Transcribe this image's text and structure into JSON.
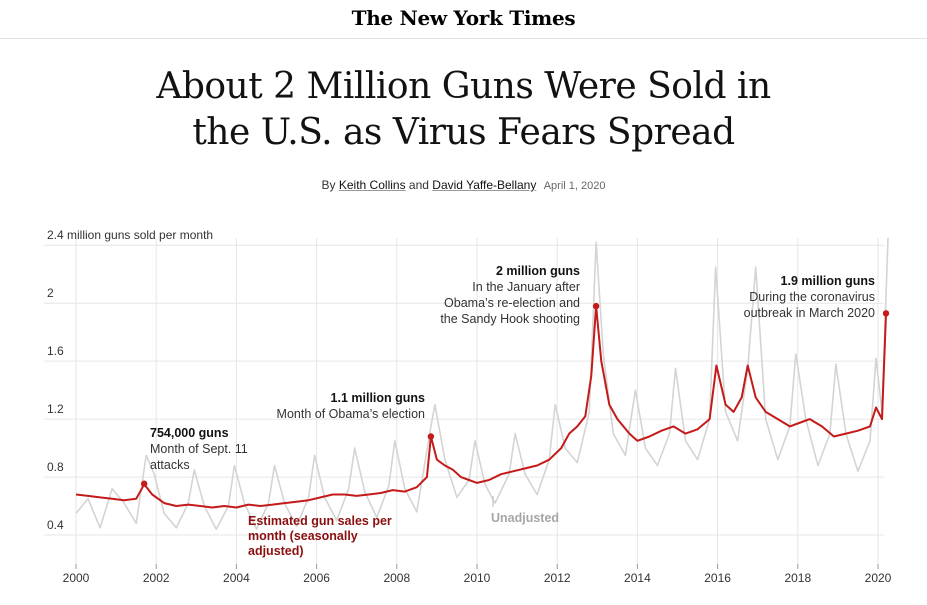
{
  "masthead": {
    "title": "The New York Times"
  },
  "article": {
    "headline_line1": "About 2 Million Guns Were Sold in",
    "headline_line2": "the U.S. as Virus Fears Spread",
    "byline_prefix": "By",
    "author1": "Keith Collins",
    "byline_and": "and",
    "author2": "David Yaffe-Bellany",
    "date": "April 1, 2020"
  },
  "colors": {
    "adjusted": "#c41a1a",
    "unadjusted": "#d4d4d4",
    "grid": "#e6e6e6",
    "label_dark_red": "#8b0f0f",
    "label_gray": "#a6a6a6"
  },
  "chart_data": {
    "type": "line",
    "title": "",
    "ylabel": "2.4 million guns sold per month",
    "ylim": [
      0.2,
      2.45
    ],
    "xlim": [
      2000,
      2020.4
    ],
    "y_ticks": [
      {
        "value": 0.4,
        "label": "0.4"
      },
      {
        "value": 0.8,
        "label": "0.8"
      },
      {
        "value": 1.2,
        "label": "1.2"
      },
      {
        "value": 1.6,
        "label": "1.6"
      },
      {
        "value": 2.0,
        "label": "2"
      },
      {
        "value": 2.4,
        "label": "2.4 million guns sold per month"
      }
    ],
    "x_ticks": [
      "2000",
      "2002",
      "2004",
      "2006",
      "2008",
      "2010",
      "2012",
      "2014",
      "2016",
      "2018",
      "2020"
    ],
    "series": [
      {
        "name": "Estimated gun sales per month (seasonally adjusted)",
        "points": [
          [
            2000.0,
            0.68
          ],
          [
            2000.3,
            0.67
          ],
          [
            2000.6,
            0.66
          ],
          [
            2000.9,
            0.65
          ],
          [
            2001.2,
            0.64
          ],
          [
            2001.5,
            0.65
          ],
          [
            2001.7,
            0.75
          ],
          [
            2001.9,
            0.68
          ],
          [
            2002.2,
            0.62
          ],
          [
            2002.5,
            0.6
          ],
          [
            2002.8,
            0.61
          ],
          [
            2003.1,
            0.6
          ],
          [
            2003.4,
            0.59
          ],
          [
            2003.7,
            0.6
          ],
          [
            2004.0,
            0.59
          ],
          [
            2004.3,
            0.61
          ],
          [
            2004.6,
            0.6
          ],
          [
            2004.9,
            0.61
          ],
          [
            2005.2,
            0.62
          ],
          [
            2005.5,
            0.63
          ],
          [
            2005.8,
            0.64
          ],
          [
            2006.1,
            0.66
          ],
          [
            2006.4,
            0.68
          ],
          [
            2006.7,
            0.68
          ],
          [
            2007.0,
            0.67
          ],
          [
            2007.3,
            0.68
          ],
          [
            2007.6,
            0.69
          ],
          [
            2007.9,
            0.71
          ],
          [
            2008.2,
            0.7
          ],
          [
            2008.5,
            0.73
          ],
          [
            2008.75,
            0.8
          ],
          [
            2008.85,
            1.08
          ],
          [
            2009.0,
            0.92
          ],
          [
            2009.2,
            0.88
          ],
          [
            2009.4,
            0.85
          ],
          [
            2009.6,
            0.8
          ],
          [
            2009.8,
            0.78
          ],
          [
            2010.0,
            0.76
          ],
          [
            2010.3,
            0.78
          ],
          [
            2010.6,
            0.82
          ],
          [
            2010.9,
            0.84
          ],
          [
            2011.2,
            0.86
          ],
          [
            2011.5,
            0.88
          ],
          [
            2011.8,
            0.92
          ],
          [
            2012.1,
            1.0
          ],
          [
            2012.3,
            1.1
          ],
          [
            2012.5,
            1.15
          ],
          [
            2012.7,
            1.22
          ],
          [
            2012.85,
            1.5
          ],
          [
            2012.97,
            1.98
          ],
          [
            2013.1,
            1.6
          ],
          [
            2013.3,
            1.3
          ],
          [
            2013.5,
            1.2
          ],
          [
            2013.8,
            1.1
          ],
          [
            2014.0,
            1.05
          ],
          [
            2014.3,
            1.08
          ],
          [
            2014.6,
            1.12
          ],
          [
            2014.9,
            1.15
          ],
          [
            2015.2,
            1.1
          ],
          [
            2015.5,
            1.13
          ],
          [
            2015.8,
            1.2
          ],
          [
            2015.97,
            1.57
          ],
          [
            2016.2,
            1.3
          ],
          [
            2016.4,
            1.25
          ],
          [
            2016.6,
            1.35
          ],
          [
            2016.75,
            1.57
          ],
          [
            2016.95,
            1.35
          ],
          [
            2017.2,
            1.25
          ],
          [
            2017.5,
            1.2
          ],
          [
            2017.8,
            1.15
          ],
          [
            2018.1,
            1.18
          ],
          [
            2018.3,
            1.2
          ],
          [
            2018.6,
            1.15
          ],
          [
            2018.9,
            1.08
          ],
          [
            2019.2,
            1.1
          ],
          [
            2019.5,
            1.12
          ],
          [
            2019.8,
            1.15
          ],
          [
            2019.95,
            1.28
          ],
          [
            2020.1,
            1.2
          ],
          [
            2020.2,
            1.93
          ]
        ]
      },
      {
        "name": "Unadjusted",
        "points": [
          [
            2000.0,
            0.55
          ],
          [
            2000.3,
            0.65
          ],
          [
            2000.6,
            0.45
          ],
          [
            2000.9,
            0.72
          ],
          [
            2001.2,
            0.62
          ],
          [
            2001.5,
            0.48
          ],
          [
            2001.75,
            0.95
          ],
          [
            2001.95,
            0.82
          ],
          [
            2002.2,
            0.55
          ],
          [
            2002.5,
            0.45
          ],
          [
            2002.8,
            0.62
          ],
          [
            2002.95,
            0.85
          ],
          [
            2003.2,
            0.6
          ],
          [
            2003.5,
            0.44
          ],
          [
            2003.8,
            0.6
          ],
          [
            2003.95,
            0.88
          ],
          [
            2004.2,
            0.62
          ],
          [
            2004.5,
            0.44
          ],
          [
            2004.8,
            0.62
          ],
          [
            2004.95,
            0.88
          ],
          [
            2005.2,
            0.62
          ],
          [
            2005.5,
            0.46
          ],
          [
            2005.8,
            0.66
          ],
          [
            2005.95,
            0.95
          ],
          [
            2006.2,
            0.66
          ],
          [
            2006.5,
            0.5
          ],
          [
            2006.8,
            0.72
          ],
          [
            2006.95,
            1.0
          ],
          [
            2007.2,
            0.7
          ],
          [
            2007.5,
            0.52
          ],
          [
            2007.8,
            0.74
          ],
          [
            2007.95,
            1.05
          ],
          [
            2008.2,
            0.72
          ],
          [
            2008.5,
            0.56
          ],
          [
            2008.85,
            1.15
          ],
          [
            2008.95,
            1.3
          ],
          [
            2009.2,
            0.92
          ],
          [
            2009.5,
            0.66
          ],
          [
            2009.8,
            0.78
          ],
          [
            2009.95,
            1.05
          ],
          [
            2010.2,
            0.75
          ],
          [
            2010.45,
            0.62
          ],
          [
            2010.8,
            0.82
          ],
          [
            2010.95,
            1.1
          ],
          [
            2011.2,
            0.82
          ],
          [
            2011.5,
            0.68
          ],
          [
            2011.8,
            0.92
          ],
          [
            2011.95,
            1.3
          ],
          [
            2012.2,
            1.0
          ],
          [
            2012.5,
            0.9
          ],
          [
            2012.8,
            1.25
          ],
          [
            2012.97,
            2.42
          ],
          [
            2013.15,
            1.65
          ],
          [
            2013.4,
            1.1
          ],
          [
            2013.7,
            0.95
          ],
          [
            2013.95,
            1.4
          ],
          [
            2014.2,
            1.0
          ],
          [
            2014.5,
            0.88
          ],
          [
            2014.8,
            1.1
          ],
          [
            2014.95,
            1.55
          ],
          [
            2015.2,
            1.05
          ],
          [
            2015.5,
            0.92
          ],
          [
            2015.8,
            1.2
          ],
          [
            2015.95,
            2.25
          ],
          [
            2016.2,
            1.25
          ],
          [
            2016.5,
            1.05
          ],
          [
            2016.75,
            1.55
          ],
          [
            2016.95,
            2.25
          ],
          [
            2017.2,
            1.2
          ],
          [
            2017.5,
            0.92
          ],
          [
            2017.8,
            1.15
          ],
          [
            2017.95,
            1.65
          ],
          [
            2018.2,
            1.2
          ],
          [
            2018.5,
            0.88
          ],
          [
            2018.8,
            1.1
          ],
          [
            2018.95,
            1.58
          ],
          [
            2019.2,
            1.1
          ],
          [
            2019.5,
            0.84
          ],
          [
            2019.8,
            1.05
          ],
          [
            2019.95,
            1.62
          ],
          [
            2020.1,
            1.25
          ],
          [
            2020.25,
            2.45
          ]
        ]
      }
    ],
    "annotations": [
      {
        "x": 2001.7,
        "y": 0.754,
        "bold": "754,000 guns",
        "lines": [
          "Month of Sept. 11",
          "attacks"
        ],
        "anchor": "start"
      },
      {
        "x": 2008.85,
        "y": 1.08,
        "bold": "1.1 million guns",
        "lines": [
          "Month of Obama’s election"
        ],
        "anchor": "end"
      },
      {
        "x": 2012.97,
        "y": 1.98,
        "bold": "2 million guns",
        "lines": [
          "In the January after",
          "Obama’s re-election and",
          "the Sandy Hook shooting"
        ],
        "anchor": "end"
      },
      {
        "x": 2020.2,
        "y": 1.93,
        "bold": "1.9 million guns",
        "lines": [
          "During the coronavirus",
          "outbreak in March 2020"
        ],
        "anchor": "end"
      }
    ],
    "series_labels": {
      "adjusted": [
        "Estimated gun sales per",
        "month (seasonally",
        "adjusted)"
      ],
      "unadjusted": "Unadjusted"
    }
  }
}
